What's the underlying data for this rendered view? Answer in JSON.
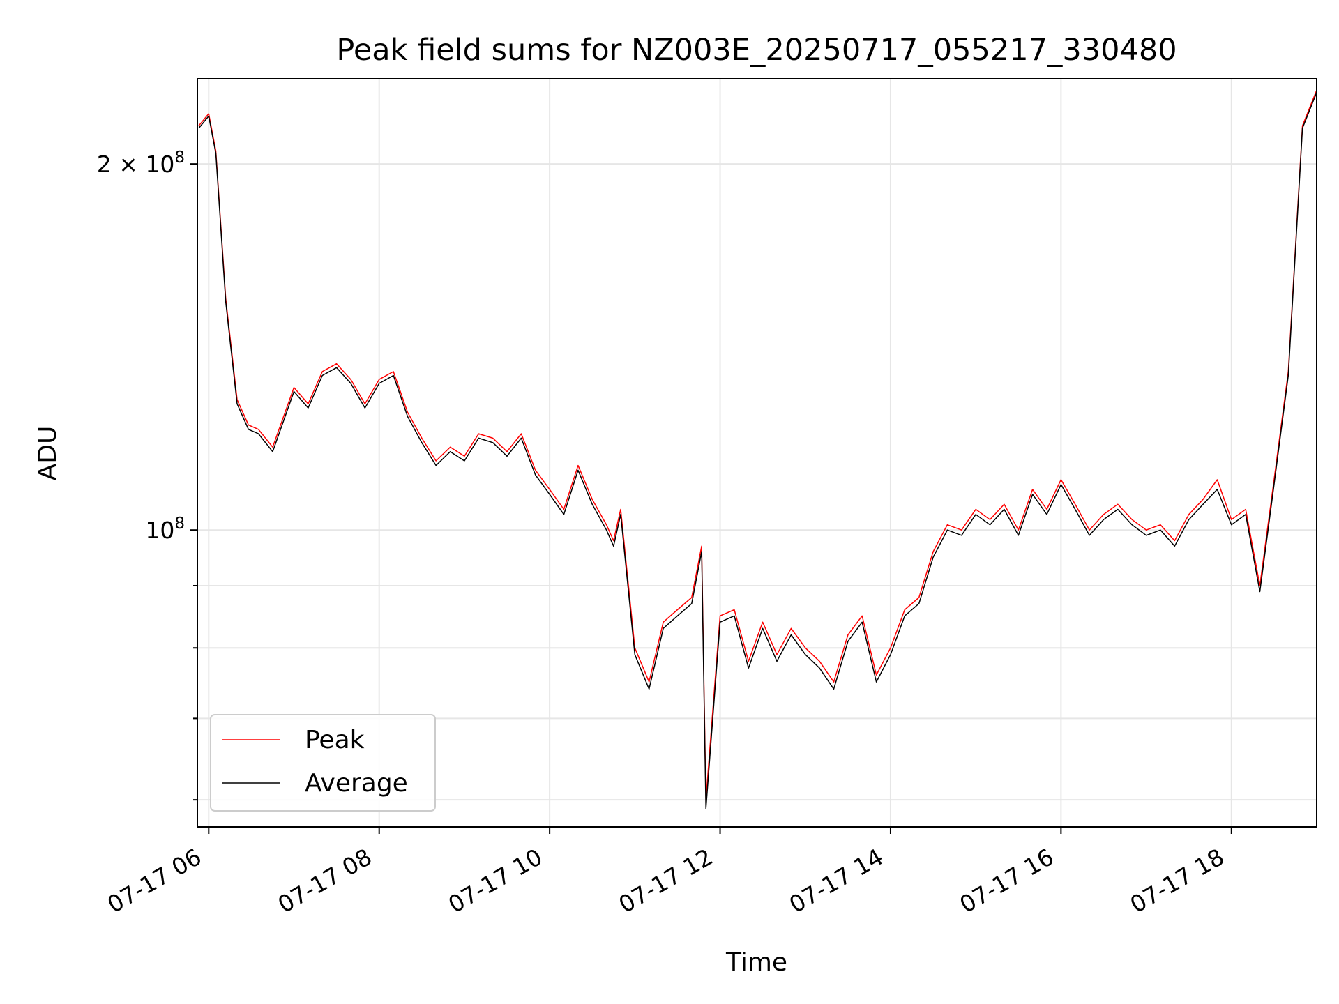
{
  "chart_data": {
    "type": "line",
    "title": "Peak field sums for NZ003E_20250717_055217_330480",
    "xlabel": "Time",
    "ylabel": "ADU",
    "y_scale": "log",
    "ylim": [
      57000000,
      235000000
    ],
    "xlim": [
      "2025-07-17 05:52",
      "2025-07-17 19:00"
    ],
    "grid": true,
    "legend_position": "lower-left",
    "x_ticks": [
      {
        "at": "2025-07-17 06:00",
        "label": "07-17 06"
      },
      {
        "at": "2025-07-17 08:00",
        "label": "07-17 08"
      },
      {
        "at": "2025-07-17 10:00",
        "label": "07-17 10"
      },
      {
        "at": "2025-07-17 12:00",
        "label": "07-17 12"
      },
      {
        "at": "2025-07-17 14:00",
        "label": "07-17 14"
      },
      {
        "at": "2025-07-17 16:00",
        "label": "07-17 16"
      },
      {
        "at": "2025-07-17 18:00",
        "label": "07-17 18"
      }
    ],
    "y_ticks_major": [
      {
        "value": 100000000,
        "base": "10",
        "exp": "8",
        "mult": ""
      },
      {
        "value": 200000000,
        "base": "10",
        "exp": "8",
        "mult": "2 × "
      }
    ],
    "y_ticks_minor": [
      60000000,
      70000000,
      80000000,
      90000000
    ],
    "x": [
      "2025-07-17 05:53",
      "2025-07-17 06:00",
      "2025-07-17 06:05",
      "2025-07-17 06:12",
      "2025-07-17 06:20",
      "2025-07-17 06:28",
      "2025-07-17 06:35",
      "2025-07-17 06:45",
      "2025-07-17 07:00",
      "2025-07-17 07:10",
      "2025-07-17 07:20",
      "2025-07-17 07:30",
      "2025-07-17 07:40",
      "2025-07-17 07:50",
      "2025-07-17 08:00",
      "2025-07-17 08:10",
      "2025-07-17 08:20",
      "2025-07-17 08:30",
      "2025-07-17 08:40",
      "2025-07-17 08:50",
      "2025-07-17 09:00",
      "2025-07-17 09:10",
      "2025-07-17 09:20",
      "2025-07-17 09:30",
      "2025-07-17 09:40",
      "2025-07-17 09:50",
      "2025-07-17 10:00",
      "2025-07-17 10:10",
      "2025-07-17 10:20",
      "2025-07-17 10:30",
      "2025-07-17 10:40",
      "2025-07-17 10:45",
      "2025-07-17 10:50",
      "2025-07-17 11:00",
      "2025-07-17 11:10",
      "2025-07-17 11:20",
      "2025-07-17 11:30",
      "2025-07-17 11:40",
      "2025-07-17 11:47",
      "2025-07-17 11:50",
      "2025-07-17 12:00",
      "2025-07-17 12:10",
      "2025-07-17 12:20",
      "2025-07-17 12:30",
      "2025-07-17 12:40",
      "2025-07-17 12:50",
      "2025-07-17 13:00",
      "2025-07-17 13:10",
      "2025-07-17 13:20",
      "2025-07-17 13:30",
      "2025-07-17 13:40",
      "2025-07-17 13:50",
      "2025-07-17 14:00",
      "2025-07-17 14:10",
      "2025-07-17 14:20",
      "2025-07-17 14:30",
      "2025-07-17 14:40",
      "2025-07-17 14:50",
      "2025-07-17 15:00",
      "2025-07-17 15:10",
      "2025-07-17 15:20",
      "2025-07-17 15:30",
      "2025-07-17 15:40",
      "2025-07-17 15:50",
      "2025-07-17 16:00",
      "2025-07-17 16:10",
      "2025-07-17 16:20",
      "2025-07-17 16:30",
      "2025-07-17 16:40",
      "2025-07-17 16:50",
      "2025-07-17 17:00",
      "2025-07-17 17:10",
      "2025-07-17 17:20",
      "2025-07-17 17:30",
      "2025-07-17 17:40",
      "2025-07-17 17:50",
      "2025-07-17 18:00",
      "2025-07-17 18:10",
      "2025-07-17 18:20",
      "2025-07-17 18:30",
      "2025-07-17 18:40",
      "2025-07-17 18:50",
      "2025-07-17 19:00"
    ],
    "series": [
      {
        "name": "Peak",
        "color": "#ff0000",
        "values": [
          215000000,
          220000000,
          205000000,
          155000000,
          128000000,
          122000000,
          121000000,
          117000000,
          131000000,
          127000000,
          135000000,
          137000000,
          133000000,
          127000000,
          133000000,
          135000000,
          125000000,
          119000000,
          114000000,
          117000000,
          115000000,
          120000000,
          119000000,
          116000000,
          120000000,
          112000000,
          108000000,
          104000000,
          113000000,
          106000000,
          101000000,
          98000000,
          104000000,
          80000000,
          75000000,
          84000000,
          86000000,
          88000000,
          97000000,
          60000000,
          85000000,
          86000000,
          78000000,
          84000000,
          79000000,
          83000000,
          80000000,
          78000000,
          75000000,
          82000000,
          85000000,
          76000000,
          80000000,
          86000000,
          88000000,
          96000000,
          101000000,
          100000000,
          104000000,
          102000000,
          105000000,
          100000000,
          108000000,
          104000000,
          110000000,
          105000000,
          100000000,
          103000000,
          105000000,
          102000000,
          100000000,
          101000000,
          98000000,
          103000000,
          106000000,
          110000000,
          102000000,
          104000000,
          90000000,
          110000000,
          135000000,
          215000000,
          230000000
        ]
      },
      {
        "name": "Average",
        "color": "#000000",
        "values": [
          214000000,
          219000000,
          204000000,
          154000000,
          127000000,
          121000000,
          120000000,
          116000000,
          130000000,
          126000000,
          134000000,
          136000000,
          132000000,
          126000000,
          132000000,
          134000000,
          124000000,
          118000000,
          113000000,
          116000000,
          114000000,
          119000000,
          118000000,
          115000000,
          119000000,
          111000000,
          107000000,
          103000000,
          112000000,
          105000000,
          100000000,
          97000000,
          103000000,
          79000000,
          74000000,
          83000000,
          85000000,
          87000000,
          96000000,
          59000000,
          84000000,
          85000000,
          77000000,
          83000000,
          78000000,
          82000000,
          79000000,
          77000000,
          74000000,
          81000000,
          84000000,
          75000000,
          79000000,
          85000000,
          87000000,
          95000000,
          100000000,
          99000000,
          103000000,
          101000000,
          104000000,
          99000000,
          107000000,
          103000000,
          109000000,
          104000000,
          99000000,
          102000000,
          104000000,
          101000000,
          99000000,
          100000000,
          97000000,
          102000000,
          105000000,
          108000000,
          101000000,
          103000000,
          89000000,
          109000000,
          134000000,
          214000000,
          229000000
        ]
      }
    ]
  }
}
